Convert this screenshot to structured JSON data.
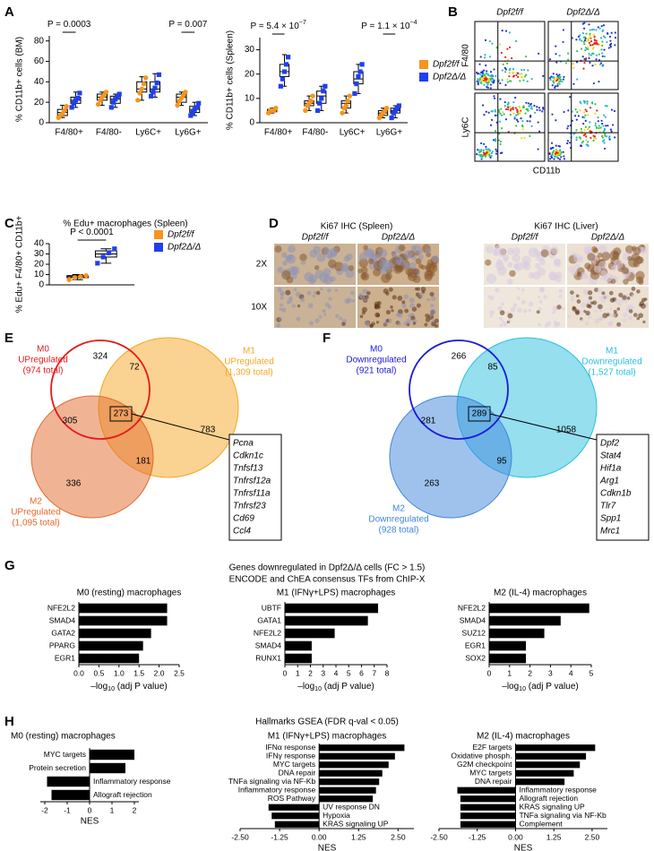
{
  "figure": {
    "panel_labels": [
      "A",
      "B",
      "C",
      "D",
      "E",
      "F",
      "G",
      "H"
    ],
    "B": {
      "columns": [
        "Dpf2f/f",
        "Dpf2Δ/Δ"
      ],
      "row_labels": [
        "F4/80",
        "Ly6C"
      ],
      "x_label": "CD11b"
    },
    "D": {
      "groups": [
        {
          "title": "Ki67 IHC (Spleen)",
          "columns": [
            "Dpf2f/f",
            "Dpf2Δ/Δ"
          ]
        },
        {
          "title": "Ki67 IHC (Liver)",
          "columns": [
            "Dpf2f/f",
            "Dpf2Δ/Δ"
          ]
        }
      ],
      "rows": [
        "2X",
        "10X"
      ]
    },
    "E": {
      "sets": [
        {
          "lines": [
            "M0",
            "UPregulated",
            "(974 total)"
          ],
          "color": "#e41a1c"
        },
        {
          "lines": [
            "M1",
            "UPregulated",
            "(1,309 total)"
          ],
          "color": "#f5a623"
        },
        {
          "lines": [
            "M2",
            "UPregulated",
            "(1,095 total)"
          ],
          "color": "#e2692b"
        }
      ],
      "regions": {
        "m0": 324,
        "m0_m1": 72,
        "m0_m2": 305,
        "all": 273,
        "m1": 783,
        "m2": 336,
        "m1_m2": 181
      },
      "genes": [
        "Pcna",
        "Cdkn1c",
        "Tnfsf13",
        "Tnfrsf12a",
        "Tnfrsf11a",
        "Tnfrsf23",
        "Cd69",
        "Ccl4"
      ]
    },
    "F": {
      "sets": [
        {
          "lines": [
            "M0",
            "Downregulated",
            "(921 total)"
          ],
          "color": "#1a1adb"
        },
        {
          "lines": [
            "M1",
            "Downregulated",
            "(1,527 total)"
          ],
          "color": "#2bbfe0"
        },
        {
          "lines": [
            "M2",
            "Downregulated",
            "(928 total)"
          ],
          "color": "#3f86dc"
        }
      ],
      "regions": {
        "m0": 266,
        "m0_m1": 85,
        "m0_m2": 281,
        "all": 289,
        "m1": 1058,
        "m2": 263,
        "m1_m2": 95
      },
      "genes": [
        "Dpf2",
        "Stat4",
        "Hif1a",
        "Arg1",
        "Cdkn1b",
        "Tlr7",
        "Spp1",
        "Mrc1"
      ]
    },
    "G_title": [
      "Genes downregulated in Dpf2Δ/Δ cells (FC > 1.5)",
      "ENCODE and ChEA consensus TFs from ChIP-X"
    ],
    "H_title": "Hallmarks GSEA (FDR q-val < 0.05)"
  },
  "chart_data": [
    {
      "type": "box",
      "ylabel": "% CD11b+ cells (BM)",
      "categories": [
        "F4/80+",
        "F4/80-",
        "Ly6C+",
        "Ly6G+"
      ],
      "ylim": [
        0,
        85
      ],
      "yticks": [
        0,
        20,
        40,
        60,
        80
      ],
      "annotations": [
        "P = 0.0003",
        null,
        null,
        "P = 0.007"
      ],
      "series": [
        {
          "color": "#f7941d",
          "marker": "circle",
          "boxes": [
            [
              5,
              7,
              10,
              13,
              17
            ],
            [
              17,
              22,
              25,
              28,
              30
            ],
            [
              22,
              30,
              33,
              40,
              45
            ],
            [
              17,
              20,
              25,
              28,
              30
            ]
          ],
          "points": [
            [
              5,
              7,
              9,
              12,
              16
            ],
            [
              18,
              22,
              25,
              27,
              30
            ],
            [
              22,
              29,
              33,
              38,
              44
            ],
            [
              17,
              21,
              24,
              27,
              30
            ]
          ]
        },
        {
          "color": "#1f3ff0",
          "marker": "square",
          "boxes": [
            [
              15,
              19,
              22,
              25,
              30
            ],
            [
              15,
              19,
              23,
              26,
              28
            ],
            [
              25,
              30,
              33,
              40,
              48
            ],
            [
              7,
              10,
              13,
              16,
              20
            ]
          ],
          "points": [
            [
              15,
              19,
              22,
              24,
              29
            ],
            [
              15,
              20,
              23,
              25,
              28
            ],
            [
              26,
              30,
              34,
              39,
              47
            ],
            [
              7,
              10,
              13,
              15,
              19
            ]
          ]
        }
      ]
    },
    {
      "type": "box",
      "ylabel": "% CD11b+ cells (Spleen)",
      "categories": [
        "F4/80+",
        "F4/80-",
        "Ly6C+",
        "Ly6G+"
      ],
      "ylim": [
        0,
        35
      ],
      "yticks": [
        0,
        10,
        20,
        30
      ],
      "annotations": [
        "P = 5.4 × 10",
        null,
        null,
        "P = 1.1 × 10"
      ],
      "annotation_exponents": [
        "−7",
        null,
        null,
        "−4"
      ],
      "legend": true,
      "series": [
        {
          "name": "Dpf2f/f",
          "color": "#f7941d",
          "marker": "circle",
          "boxes": [
            [
              4,
              4.5,
              5,
              5.5,
              6
            ],
            [
              5,
              7,
              8,
              9,
              11
            ],
            [
              4,
              6,
              8,
              9,
              11
            ],
            [
              2,
              3,
              4,
              5,
              6
            ]
          ],
          "points": [
            [
              4,
              5,
              5,
              5,
              6
            ],
            [
              5,
              7,
              8,
              9,
              11
            ],
            [
              4,
              6,
              7,
              9,
              11
            ],
            [
              2,
              3,
              4,
              5,
              6
            ]
          ]
        },
        {
          "name": "Dpf2Δ/Δ",
          "color": "#1f3ff0",
          "marker": "square",
          "boxes": [
            [
              15,
              19,
              21,
              24,
              28
            ],
            [
              5,
              8,
              11,
              13,
              15
            ],
            [
              12,
              16,
              18,
              21,
              24
            ],
            [
              2,
              4,
              5,
              6,
              7
            ]
          ],
          "points": [
            [
              15,
              18,
              21,
              24,
              27
            ],
            [
              5,
              8,
              10,
              13,
              15
            ],
            [
              12,
              16,
              19,
              21,
              24
            ],
            [
              2,
              4,
              5,
              6,
              7
            ]
          ]
        }
      ]
    },
    {
      "type": "box",
      "title": "% Edu+ macrophages (Spleen)",
      "ylabel": "% Edu+ F4/80+ CD11b+",
      "ylim": [
        0,
        40
      ],
      "yticks": [
        0,
        10,
        20,
        30,
        40
      ],
      "annotations": [
        "P < 0.0001"
      ],
      "legend": true,
      "series": [
        {
          "name": "Dpf2f/f",
          "color": "#f7941d",
          "marker": "circle",
          "boxes": [
            [
              5,
              7,
              8,
              9,
              10
            ]
          ],
          "points": [
            [
              5,
              7,
              8,
              9
            ]
          ]
        },
        {
          "name": "Dpf2Δ/Δ",
          "color": "#1f3ff0",
          "marker": "square",
          "boxes": [
            [
              21,
              27,
              30,
              33,
              35
            ]
          ],
          "points": [
            [
              21,
              27,
              31,
              35
            ]
          ]
        }
      ]
    },
    {
      "type": "barh",
      "title": "M0 (resting) macrophages",
      "categories": [
        "NFE2L2",
        "SMAD4",
        "GATA2",
        "PPARG",
        "EGR1"
      ],
      "values": [
        2.2,
        2.2,
        1.8,
        1.6,
        1.5
      ],
      "color": "#000000",
      "xlim": [
        0,
        2.5
      ],
      "xticks": [
        {
          "value": 0,
          "label": "0.0"
        },
        0.5,
        {
          "value": 1,
          "label": "1.0"
        },
        1.5,
        {
          "value": 2,
          "label": "2.0"
        },
        2.5
      ],
      "xlabel": [
        "–log",
        "10",
        " (adj P value)"
      ]
    },
    {
      "type": "barh",
      "title": "M1 (IFNγ+LPS) macrophages",
      "categories": [
        "UBTF",
        "GATA1",
        "NFE2L2",
        "SMAD4",
        "RUNX1"
      ],
      "values": [
        7.3,
        6.5,
        3.9,
        2.1,
        2.1
      ],
      "color": "#000000",
      "xlim": [
        0,
        8
      ],
      "xticks": [
        0,
        1,
        2,
        3,
        4,
        5,
        6,
        7,
        8
      ],
      "xlabel": [
        "–log",
        "10",
        " (adj P value)"
      ]
    },
    {
      "type": "barh",
      "title": "M2 (IL-4) macrophages",
      "categories": [
        "NFE2L2",
        "SMAD4",
        "SUZ12",
        "EGR1",
        "SOX2"
      ],
      "values": [
        4.9,
        3.5,
        2.7,
        1.8,
        1.8
      ],
      "color": "#000000",
      "xlim": [
        0,
        5
      ],
      "xticks": [
        0,
        1,
        2,
        3,
        4,
        5
      ],
      "xlabel": [
        "–log",
        "10",
        " (adj P value)"
      ]
    },
    {
      "type": "barh",
      "title": "M0 (resting) macrophages",
      "categories": [
        "MYC targets",
        "Protein secretion",
        "Inflammatory response",
        "Allograft rejection"
      ],
      "values": [
        2.0,
        1.6,
        -1.9,
        -1.7
      ],
      "color": "#000000",
      "xlim": [
        -2.2,
        2.2
      ],
      "xticks": [
        -2,
        -1,
        0,
        1,
        2
      ],
      "xlabel": "NES"
    },
    {
      "type": "barh",
      "title": "M1 (IFNγ+LPS) macrophages",
      "categories": [
        "IFNα response",
        "IFNγ response",
        "MYC targets",
        "DNA repair",
        "TNFa signaling via NF-Kb",
        "Inflammatory response",
        "ROS Pathway",
        "UV response DN",
        "Hypoxia",
        "KRAS signaling UP"
      ],
      "values": [
        2.7,
        2.4,
        2.2,
        2.0,
        1.9,
        1.8,
        1.7,
        -1.6,
        -1.5,
        -1.4
      ],
      "color": "#000000",
      "xlim": [
        -2.5,
        3
      ],
      "xticks": [
        {
          "value": -2.5,
          "label": "-2.50"
        },
        -1.25,
        {
          "value": 0,
          "label": "0.00"
        },
        1.25,
        {
          "value": 2.5,
          "label": "2.50"
        }
      ],
      "xlabel": "NES"
    },
    {
      "type": "barh",
      "title": "M2 (IL-4) macrophages",
      "categories": [
        "E2F targets",
        "Oxidative phosph.",
        "G2M checkpoint",
        "MYC targets",
        "DNA repair",
        "Inflammatory response",
        "Allograft rejection",
        "KRAS signaling UP",
        "TNFa signaling via NF-Kb",
        "Complement"
      ],
      "values": [
        2.6,
        2.3,
        2.1,
        1.9,
        1.6,
        -1.9,
        -1.8,
        -1.8,
        -1.8,
        -1.8
      ],
      "color": "#000000",
      "xlim": [
        -2.5,
        3
      ],
      "xticks": [
        {
          "value": -2.5,
          "label": "-2.50"
        },
        -1.25,
        {
          "value": 0,
          "label": "0.00"
        },
        1.25,
        {
          "value": 2.5,
          "label": "2.50"
        }
      ],
      "xlabel": "NES"
    }
  ]
}
